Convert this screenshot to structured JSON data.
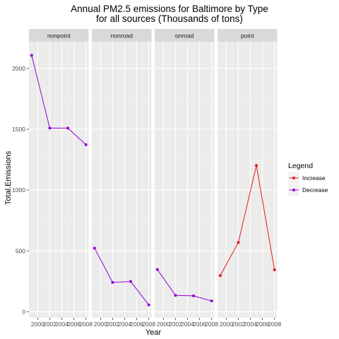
{
  "chart_data": {
    "type": "line",
    "title": "Annual PM2.5 emissions for Baltimore by Type",
    "subtitle": "for all sources (Thousands of tons)",
    "xlabel": "Year",
    "ylabel": "Total.Emissions",
    "x_ticks": [
      1999,
      2002,
      2005,
      2008
    ],
    "x_tick_labels": [
      "2000",
      "2002",
      "2004",
      "2006",
      "2008"
    ],
    "x_tick_values": [
      2000,
      2002,
      2004,
      2006,
      2008
    ],
    "xlim": [
      1998.55,
      2008.45
    ],
    "ylim": [
      -50,
      2220
    ],
    "y_ticks": [
      0,
      500,
      1000,
      1500,
      2000
    ],
    "grid": true,
    "legend": {
      "title": "Legend",
      "placement": "right",
      "entries": [
        {
          "label": "Increase",
          "color": "#e41a1c"
        },
        {
          "label": "Decrease",
          "color": "#9400d3"
        }
      ]
    },
    "panels": [
      {
        "name": "nonpoint",
        "series": "Decrease",
        "points": [
          [
            1999,
            2107.6
          ],
          [
            2002,
            1509.5
          ],
          [
            2005,
            1509.5
          ],
          [
            2008,
            1373.2
          ]
        ]
      },
      {
        "name": "nonroad",
        "series": "Decrease",
        "points": [
          [
            1999,
            522.9
          ],
          [
            2002,
            240.8
          ],
          [
            2005,
            248.9
          ],
          [
            2008,
            55.8
          ]
        ]
      },
      {
        "name": "onroad",
        "series": "Decrease",
        "points": [
          [
            1999,
            346.8
          ],
          [
            2002,
            134.3
          ],
          [
            2005,
            130.4
          ],
          [
            2008,
            88.3
          ]
        ]
      },
      {
        "name": "point",
        "series": "Increase",
        "points": [
          [
            1999,
            296.8
          ],
          [
            2002,
            569.3
          ],
          [
            2005,
            1202.5
          ],
          [
            2008,
            344.98
          ]
        ]
      }
    ]
  }
}
